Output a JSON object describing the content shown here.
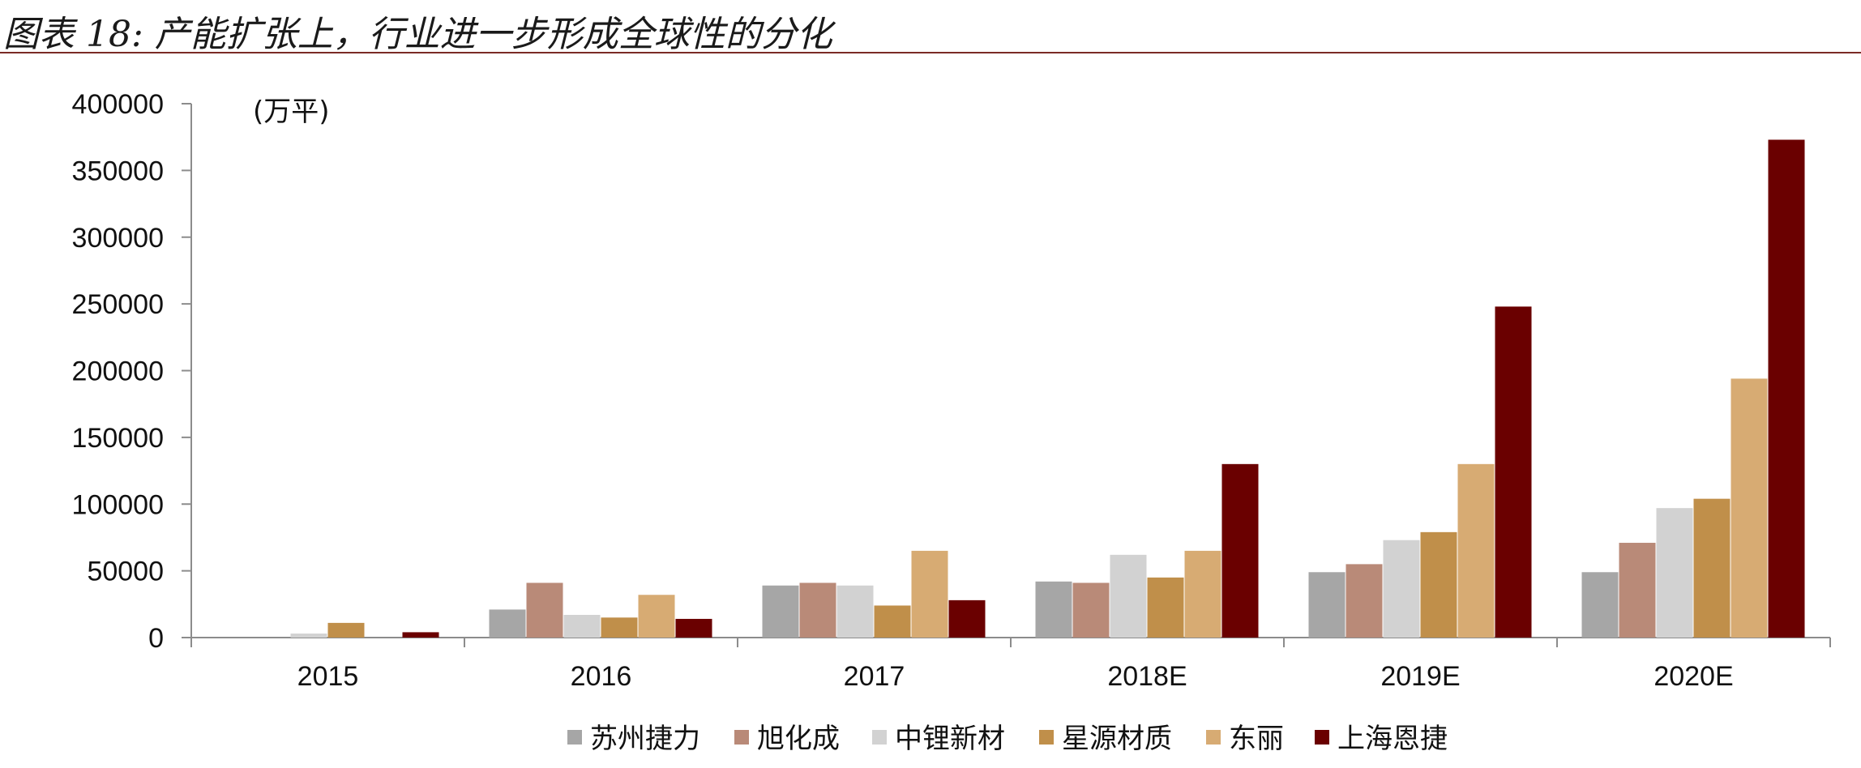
{
  "figure": {
    "title": "图表 18:  产能扩张上，行业进一步形成全球性的分化"
  },
  "chart_data": {
    "type": "bar",
    "unit": "(万平)",
    "categories": [
      "2015",
      "2016",
      "2017",
      "2018E",
      "2019E",
      "2020E"
    ],
    "ylim": [
      0,
      400000
    ],
    "yticks": [
      0,
      50000,
      100000,
      150000,
      200000,
      250000,
      300000,
      350000,
      400000
    ],
    "grid": false,
    "legend_position": "bottom",
    "series": [
      {
        "name": "苏州捷力",
        "color": "#a6a6a6",
        "values": [
          0,
          21000,
          39000,
          42000,
          49000,
          49000
        ]
      },
      {
        "name": "旭化成",
        "color": "#b98a78",
        "values": [
          0,
          41000,
          41000,
          41000,
          55000,
          71000
        ]
      },
      {
        "name": "中锂新材",
        "color": "#d2d2d2",
        "values": [
          3000,
          17000,
          39000,
          62000,
          73000,
          97000
        ]
      },
      {
        "name": "星源材质",
        "color": "#c08f4a",
        "values": [
          11000,
          15000,
          24000,
          45000,
          79000,
          104000
        ]
      },
      {
        "name": "东丽",
        "color": "#d7ab73",
        "values": [
          0,
          32000,
          65000,
          65000,
          130000,
          194000
        ]
      },
      {
        "name": "上海恩捷",
        "color": "#6a0000",
        "values": [
          4000,
          14000,
          28000,
          130000,
          248000,
          373000
        ]
      }
    ]
  }
}
